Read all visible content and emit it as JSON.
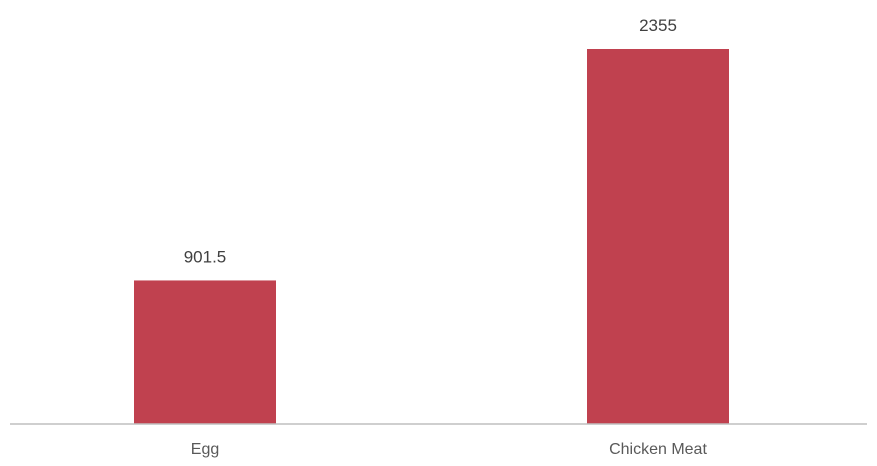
{
  "chart_data": {
    "type": "bar",
    "categories": [
      "Egg",
      "Chicken Meat"
    ],
    "values": [
      901.5,
      2355
    ],
    "data_labels": [
      "901.5",
      "2355"
    ],
    "title": "",
    "xlabel": "",
    "ylabel": "",
    "ylim": [
      0,
      2500
    ],
    "grid": false,
    "legend": "none",
    "bar_color": "#c0414f",
    "axis_color": "#bfbfbf"
  }
}
